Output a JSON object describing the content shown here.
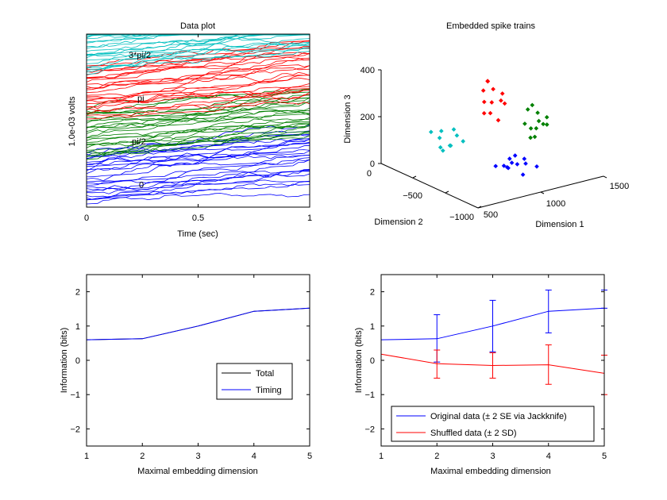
{
  "panels": {
    "data_plot": {
      "title": "Data plot",
      "xlabel": "Time (sec)",
      "ylabel": "1.0e-03 volts",
      "xticks": [
        "0",
        "0.5",
        "1"
      ],
      "xlim": [
        0,
        1
      ],
      "groups": [
        {
          "label": "0",
          "color": "#0000ff"
        },
        {
          "label": "pi/2",
          "color": "#008000"
        },
        {
          "label": "pi",
          "color": "#ff0000"
        },
        {
          "label": "3*pi/2",
          "color": "#00bfbf"
        }
      ]
    },
    "embedded": {
      "title": "Embedded spike trains",
      "xlabel": "Dimension 1",
      "ylabel": "Dimension 2",
      "zlabel": "Dimension 3",
      "xticks": [
        "500",
        "1000",
        "1500"
      ],
      "yticks": [
        "0",
        "−500",
        "−1000"
      ],
      "zticks": [
        "0",
        "200",
        "400"
      ]
    },
    "info_total": {
      "xlabel": "Maximal embedding dimension",
      "ylabel": "Information (bits)",
      "xticks": [
        "1",
        "2",
        "3",
        "4",
        "5"
      ],
      "yticks": [
        "−2",
        "−1",
        "0",
        "1",
        "2"
      ],
      "legend": [
        {
          "label": "Total",
          "color": "#000000"
        },
        {
          "label": "Timing",
          "color": "#0000ff"
        }
      ]
    },
    "info_compare": {
      "xlabel": "Maximal embedding dimension",
      "ylabel": "Information (bits)",
      "xticks": [
        "1",
        "2",
        "3",
        "4",
        "5"
      ],
      "yticks": [
        "−2",
        "−1",
        "0",
        "1",
        "2"
      ],
      "legend": [
        {
          "label": "Original data (± 2 SE via Jackknife)",
          "color": "#0000ff"
        },
        {
          "label": "Shuffled data (± 2 SD)",
          "color": "#ff0000"
        }
      ]
    }
  },
  "chart_data": [
    {
      "type": "line",
      "title": "Data plot",
      "xlabel": "Time (sec)",
      "ylabel": "1.0e-03 volts",
      "xlim": [
        0,
        1
      ],
      "series": [
        {
          "name": "0",
          "color": "#0000ff"
        },
        {
          "name": "pi/2",
          "color": "#008000"
        },
        {
          "name": "pi",
          "color": "#ff0000"
        },
        {
          "name": "3*pi/2",
          "color": "#00bfbf"
        }
      ]
    },
    {
      "type": "scatter",
      "title": "Embedded spike trains",
      "xlabel": "Dimension 1",
      "ylabel": "Dimension 2",
      "zlabel": "Dimension 3",
      "xlim": [
        500,
        1500
      ],
      "ylim": [
        -1000,
        0
      ],
      "zlim": [
        0,
        400
      ],
      "series": [
        {
          "color": "#0000ff",
          "points": [
            [
              1050,
              -600,
              20
            ],
            [
              1150,
              -650,
              35
            ],
            [
              1080,
              -550,
              10
            ],
            [
              1000,
              -620,
              40
            ],
            [
              1120,
              -580,
              60
            ],
            [
              1200,
              -700,
              25
            ],
            [
              1060,
              -680,
              50
            ],
            [
              980,
              -560,
              30
            ],
            [
              1140,
              -520,
              15
            ],
            [
              1030,
              -640,
              70
            ],
            [
              1170,
              -610,
              45
            ],
            [
              1090,
              -700,
              5
            ]
          ]
        },
        {
          "color": "#008000",
          "points": [
            [
              1350,
              -500,
              130
            ],
            [
              1400,
              -450,
              180
            ],
            [
              1300,
              -550,
              110
            ],
            [
              1450,
              -480,
              160
            ],
            [
              1380,
              -420,
              210
            ],
            [
              1320,
              -480,
              90
            ],
            [
              1420,
              -520,
              140
            ],
            [
              1360,
              -400,
              190
            ],
            [
              1290,
              -460,
              150
            ],
            [
              1460,
              -430,
              120
            ],
            [
              1340,
              -540,
              170
            ],
            [
              1400,
              -380,
              100
            ]
          ]
        },
        {
          "color": "#ff0000",
          "points": [
            [
              1150,
              -300,
              230
            ],
            [
              1200,
              -250,
              270
            ],
            [
              1100,
              -350,
              200
            ],
            [
              1250,
              -280,
              250
            ],
            [
              1180,
              -220,
              300
            ],
            [
              1120,
              -260,
              180
            ],
            [
              1230,
              -330,
              220
            ],
            [
              1160,
              -200,
              260
            ],
            [
              1090,
              -300,
              240
            ],
            [
              1270,
              -240,
              210
            ],
            [
              1140,
              -380,
              170
            ],
            [
              1210,
              -180,
              290
            ]
          ]
        },
        {
          "color": "#00bfbf",
          "points": [
            [
              850,
              -150,
              90
            ],
            [
              900,
              -200,
              60
            ],
            [
              820,
              -100,
              110
            ],
            [
              960,
              -250,
              80
            ],
            [
              880,
              -120,
              40
            ],
            [
              940,
              -180,
              120
            ],
            [
              870,
              -230,
              70
            ],
            [
              910,
              -90,
              100
            ],
            [
              830,
              -210,
              50
            ],
            [
              980,
              -160,
              85
            ]
          ]
        }
      ]
    },
    {
      "type": "line",
      "xlabel": "Maximal embedding dimension",
      "ylabel": "Information (bits)",
      "xlim": [
        1,
        5
      ],
      "ylim": [
        -2.5,
        2.5
      ],
      "x": [
        1,
        2,
        3,
        4,
        5
      ],
      "series": [
        {
          "name": "Total",
          "color": "#000000",
          "values": [
            0.6,
            0.63,
            1.0,
            1.43,
            1.52
          ]
        },
        {
          "name": "Timing",
          "color": "#0000ff",
          "values": [
            0.6,
            0.63,
            1.0,
            1.43,
            1.52
          ]
        }
      ],
      "legend_position": "lower-right"
    },
    {
      "type": "line",
      "xlabel": "Maximal embedding dimension",
      "ylabel": "Information (bits)",
      "xlim": [
        1,
        5
      ],
      "ylim": [
        -2.5,
        2.5
      ],
      "x": [
        1,
        2,
        3,
        4,
        5
      ],
      "series": [
        {
          "name": "Original data (± 2 SE via Jackknife)",
          "color": "#0000ff",
          "values": [
            0.6,
            0.63,
            1.0,
            1.43,
            1.52
          ],
          "error_low": [
            0.6,
            -0.05,
            0.25,
            0.8,
            1.52
          ],
          "error_high": [
            0.6,
            1.33,
            1.75,
            2.05,
            2.05
          ]
        },
        {
          "name": "Shuffled data (± 2 SD)",
          "color": "#ff0000",
          "values": [
            0.18,
            -0.1,
            -0.15,
            -0.13,
            -0.38
          ],
          "error_low": [
            0.18,
            -0.52,
            -0.52,
            -0.7,
            -1.0
          ],
          "error_high": [
            0.18,
            0.3,
            0.22,
            0.45,
            0.15
          ]
        }
      ],
      "legend_position": "bottom"
    }
  ]
}
